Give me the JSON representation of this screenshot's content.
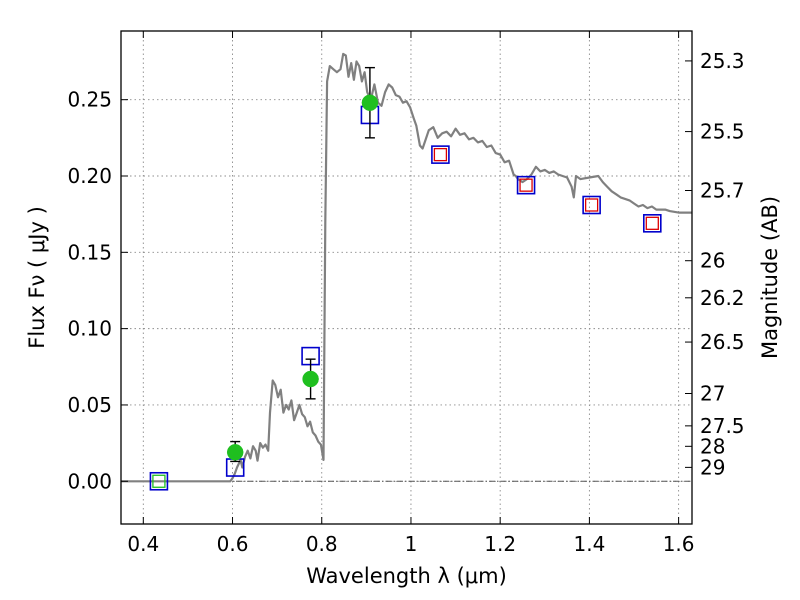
{
  "chart_data": {
    "type": "scatter",
    "xlabel": "Wavelength  λ (μm)",
    "ylabel": "Flux  Fν  ( μJy )",
    "y2label": "Magnitude (AB)",
    "xlim": [
      0.35,
      1.63
    ],
    "ylim": [
      -0.028,
      0.295
    ],
    "grid": true,
    "x_ticks": [
      {
        "value": 0.4,
        "label": "0.4"
      },
      {
        "value": 0.6,
        "label": "0.6"
      },
      {
        "value": 0.8,
        "label": "0.8"
      },
      {
        "value": 1.0,
        "label": "1"
      },
      {
        "value": 1.2,
        "label": "1.2"
      },
      {
        "value": 1.4,
        "label": "1.4"
      },
      {
        "value": 1.6,
        "label": "1.6"
      }
    ],
    "y_ticks": [
      {
        "value": 0.0,
        "label": "0.00"
      },
      {
        "value": 0.05,
        "label": "0.05"
      },
      {
        "value": 0.1,
        "label": "0.10"
      },
      {
        "value": 0.15,
        "label": "0.15"
      },
      {
        "value": 0.2,
        "label": "0.20"
      },
      {
        "value": 0.25,
        "label": "0.25"
      }
    ],
    "y2_ticks": [
      {
        "flux": 0.2754,
        "label": "25.3"
      },
      {
        "flux": 0.2291,
        "label": "25.5"
      },
      {
        "flux": 0.1905,
        "label": "25.7"
      },
      {
        "flux": 0.1445,
        "label": "26"
      },
      {
        "flux": 0.1202,
        "label": "26.2"
      },
      {
        "flux": 0.0912,
        "label": "26.5"
      },
      {
        "flux": 0.0575,
        "label": "27"
      },
      {
        "flux": 0.0363,
        "label": "27.5"
      },
      {
        "flux": 0.0229,
        "label": "28"
      },
      {
        "flux": 0.0091,
        "label": "29"
      }
    ],
    "colors": {
      "spectrum": "#808080",
      "detection": "#1fbf1f",
      "model_box": "#0000cc",
      "inner_box": "#dd0000",
      "error_bar": "#000000",
      "grid": "#8c8c8c"
    },
    "spectrum": [
      [
        0.35,
        0.0
      ],
      [
        0.45,
        0.0
      ],
      [
        0.55,
        0.0
      ],
      [
        0.595,
        0.0
      ],
      [
        0.6,
        0.002
      ],
      [
        0.605,
        0.005
      ],
      [
        0.61,
        0.009
      ],
      [
        0.618,
        0.014
      ],
      [
        0.622,
        0.009
      ],
      [
        0.628,
        0.016
      ],
      [
        0.634,
        0.02
      ],
      [
        0.64,
        0.015
      ],
      [
        0.646,
        0.023
      ],
      [
        0.652,
        0.02
      ],
      [
        0.656,
        0.0135
      ],
      [
        0.662,
        0.025
      ],
      [
        0.668,
        0.022
      ],
      [
        0.674,
        0.024
      ],
      [
        0.68,
        0.02
      ],
      [
        0.684,
        0.045
      ],
      [
        0.69,
        0.066
      ],
      [
        0.696,
        0.063
      ],
      [
        0.702,
        0.055
      ],
      [
        0.708,
        0.06
      ],
      [
        0.714,
        0.045
      ],
      [
        0.72,
        0.05
      ],
      [
        0.726,
        0.047
      ],
      [
        0.732,
        0.053
      ],
      [
        0.738,
        0.04
      ],
      [
        0.744,
        0.045
      ],
      [
        0.75,
        0.05
      ],
      [
        0.756,
        0.044
      ],
      [
        0.762,
        0.042
      ],
      [
        0.768,
        0.036
      ],
      [
        0.774,
        0.039
      ],
      [
        0.78,
        0.032
      ],
      [
        0.786,
        0.03
      ],
      [
        0.792,
        0.026
      ],
      [
        0.798,
        0.024
      ],
      [
        0.804,
        0.014
      ],
      [
        0.808,
        0.17
      ],
      [
        0.812,
        0.262
      ],
      [
        0.818,
        0.272
      ],
      [
        0.826,
        0.27
      ],
      [
        0.834,
        0.268
      ],
      [
        0.842,
        0.27
      ],
      [
        0.848,
        0.28
      ],
      [
        0.854,
        0.279
      ],
      [
        0.86,
        0.265
      ],
      [
        0.866,
        0.274
      ],
      [
        0.872,
        0.263
      ],
      [
        0.878,
        0.275
      ],
      [
        0.884,
        0.272
      ],
      [
        0.89,
        0.262
      ],
      [
        0.896,
        0.268
      ],
      [
        0.902,
        0.255
      ],
      [
        0.91,
        0.25
      ],
      [
        0.918,
        0.26
      ],
      [
        0.926,
        0.248
      ],
      [
        0.934,
        0.246
      ],
      [
        0.942,
        0.255
      ],
      [
        0.95,
        0.26
      ],
      [
        0.958,
        0.258
      ],
      [
        0.966,
        0.253
      ],
      [
        0.974,
        0.252
      ],
      [
        0.982,
        0.248
      ],
      [
        0.99,
        0.249
      ],
      [
        0.998,
        0.245
      ],
      [
        1.006,
        0.238
      ],
      [
        1.012,
        0.233
      ],
      [
        1.02,
        0.22
      ],
      [
        1.026,
        0.218
      ],
      [
        1.032,
        0.223
      ],
      [
        1.04,
        0.23
      ],
      [
        1.05,
        0.232
      ],
      [
        1.06,
        0.225
      ],
      [
        1.07,
        0.228
      ],
      [
        1.08,
        0.229
      ],
      [
        1.09,
        0.226
      ],
      [
        1.1,
        0.231
      ],
      [
        1.11,
        0.227
      ],
      [
        1.12,
        0.228
      ],
      [
        1.13,
        0.224
      ],
      [
        1.14,
        0.225
      ],
      [
        1.15,
        0.222
      ],
      [
        1.16,
        0.223
      ],
      [
        1.17,
        0.219
      ],
      [
        1.18,
        0.22
      ],
      [
        1.19,
        0.215
      ],
      [
        1.2,
        0.214
      ],
      [
        1.21,
        0.209
      ],
      [
        1.22,
        0.21
      ],
      [
        1.23,
        0.201
      ],
      [
        1.235,
        0.2
      ],
      [
        1.24,
        0.198
      ],
      [
        1.25,
        0.196
      ],
      [
        1.26,
        0.198
      ],
      [
        1.27,
        0.201
      ],
      [
        1.28,
        0.206
      ],
      [
        1.29,
        0.203
      ],
      [
        1.3,
        0.204
      ],
      [
        1.31,
        0.202
      ],
      [
        1.32,
        0.203
      ],
      [
        1.33,
        0.201
      ],
      [
        1.34,
        0.2
      ],
      [
        1.35,
        0.199
      ],
      [
        1.36,
        0.193
      ],
      [
        1.365,
        0.186
      ],
      [
        1.37,
        0.2
      ],
      [
        1.38,
        0.198
      ],
      [
        1.4,
        0.199
      ],
      [
        1.42,
        0.2
      ],
      [
        1.43,
        0.196
      ],
      [
        1.44,
        0.193
      ],
      [
        1.45,
        0.19
      ],
      [
        1.46,
        0.188
      ],
      [
        1.47,
        0.186
      ],
      [
        1.48,
        0.185
      ],
      [
        1.49,
        0.184
      ],
      [
        1.5,
        0.182
      ],
      [
        1.51,
        0.18
      ],
      [
        1.52,
        0.181
      ],
      [
        1.53,
        0.179
      ],
      [
        1.54,
        0.18
      ],
      [
        1.55,
        0.178
      ],
      [
        1.57,
        0.178
      ],
      [
        1.58,
        0.177
      ],
      [
        1.6,
        0.176
      ],
      [
        1.63,
        0.176
      ]
    ],
    "model_points": [
      {
        "x": 0.435,
        "y": 0.0,
        "inner": "green"
      },
      {
        "x": 0.606,
        "y": 0.009,
        "inner": "none"
      },
      {
        "x": 0.775,
        "y": 0.082,
        "inner": "none"
      },
      {
        "x": 0.908,
        "y": 0.24,
        "inner": "none"
      },
      {
        "x": 1.066,
        "y": 0.214,
        "inner": "red"
      },
      {
        "x": 1.258,
        "y": 0.194,
        "inner": "red"
      },
      {
        "x": 1.405,
        "y": 0.181,
        "inner": "red"
      },
      {
        "x": 1.541,
        "y": 0.169,
        "inner": "red"
      }
    ],
    "detections": [
      {
        "x": 0.606,
        "y": 0.019,
        "err_low": 0.013,
        "err_high": 0.026
      },
      {
        "x": 0.775,
        "y": 0.067,
        "err_low": 0.054,
        "err_high": 0.08
      },
      {
        "x": 0.908,
        "y": 0.248,
        "err_low": 0.225,
        "err_high": 0.271
      }
    ]
  }
}
